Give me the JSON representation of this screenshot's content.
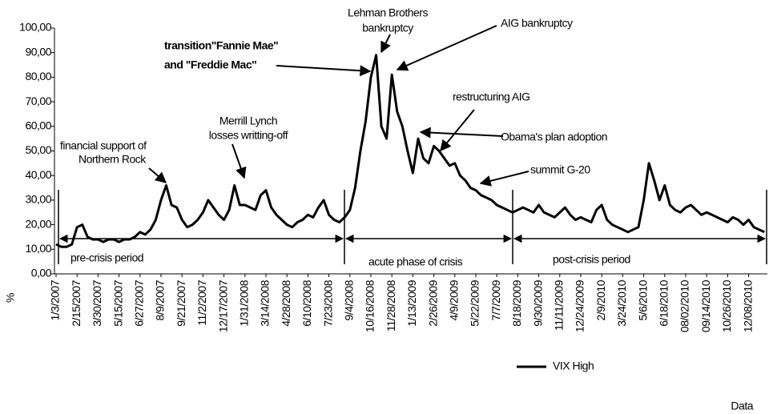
{
  "chart_data": {
    "type": "line",
    "y_label": "%",
    "x_label": "Data",
    "categories": [
      "1/3/2007",
      null,
      null,
      null,
      "2/15/2007",
      null,
      null,
      null,
      "3/30/2007",
      null,
      null,
      null,
      "5/15/2007",
      null,
      null,
      null,
      "6/27/2007",
      null,
      null,
      null,
      "8/9/2007",
      null,
      null,
      null,
      "9/21/2007",
      null,
      null,
      null,
      "11/2/2007",
      null,
      null,
      null,
      "12/17/2007",
      null,
      null,
      null,
      "1/31/2008",
      null,
      null,
      null,
      "3/14/2008",
      null,
      null,
      null,
      "4/28/2008",
      null,
      null,
      null,
      "6/10/2008",
      null,
      null,
      null,
      "7/23/2008",
      null,
      null,
      null,
      "9/4/2008",
      null,
      null,
      null,
      "10/16/2008",
      null,
      null,
      null,
      "11/28/2008",
      null,
      null,
      null,
      "1/13/2009",
      null,
      null,
      null,
      "2/26/2009",
      null,
      null,
      null,
      "4/9/2009",
      null,
      null,
      null,
      "5/22/2009",
      null,
      null,
      null,
      "7/7/2009",
      null,
      null,
      null,
      "8/18/2009",
      null,
      null,
      null,
      "9/30/2009",
      null,
      null,
      null,
      "11/11/2009",
      null,
      null,
      null,
      "12/24/2009",
      null,
      null,
      null,
      "2/9/2010",
      null,
      null,
      null,
      "3/24/2010",
      null,
      null,
      null,
      "5/6/2010",
      null,
      null,
      null,
      "6/18/2010",
      null,
      null,
      null,
      "08/02/2010",
      null,
      null,
      null,
      "09/14/2010",
      null,
      null,
      null,
      "10/26/2010",
      null,
      null,
      null,
      "12/08/2010",
      null,
      null,
      null
    ],
    "series": [
      {
        "name": "VIX High",
        "color": "#000000",
        "values": [
          12,
          11,
          11,
          12,
          19,
          20,
          15,
          14,
          14,
          13,
          14,
          14,
          13,
          14,
          14,
          15,
          17,
          16,
          18,
          22,
          30,
          36,
          28,
          27,
          22,
          19,
          20,
          22,
          25,
          30,
          27,
          24,
          22,
          26,
          36,
          28,
          28,
          27,
          26,
          32,
          34,
          27,
          24,
          22,
          20,
          19,
          21,
          22,
          24,
          23,
          27,
          30,
          24,
          22,
          21,
          23,
          26,
          35,
          50,
          62,
          80,
          89,
          60,
          55,
          81,
          66,
          60,
          50,
          41,
          55,
          47,
          45,
          52,
          50,
          47,
          44,
          45,
          40,
          38,
          35,
          34,
          32,
          31,
          30,
          28,
          27,
          26,
          25,
          26,
          27,
          26,
          25,
          28,
          25,
          24,
          23,
          25,
          27,
          24,
          22,
          23,
          22,
          21,
          26,
          28,
          22,
          20,
          19,
          18,
          17,
          18,
          19,
          30,
          45,
          38,
          30,
          36,
          28,
          26,
          25,
          27,
          28,
          26,
          24,
          25,
          24,
          23,
          22,
          21,
          23,
          22,
          20,
          22,
          19,
          18,
          17
        ]
      }
    ],
    "ylim": [
      0,
      100
    ],
    "yticks": [
      {
        "value": 0,
        "label": "0,00"
      },
      {
        "value": 10,
        "label": "10,00"
      },
      {
        "value": 20,
        "label": "20,00"
      },
      {
        "value": 30,
        "label": "30,00"
      },
      {
        "value": 40,
        "label": "40,00"
      },
      {
        "value": 50,
        "label": "50,00"
      },
      {
        "value": 60,
        "label": "60,00"
      },
      {
        "value": 70,
        "label": "70,00"
      },
      {
        "value": 80,
        "label": "80,00"
      },
      {
        "value": 90,
        "label": "90,00"
      },
      {
        "value": 100,
        "label": "100,00"
      }
    ],
    "annotations": [
      "Lehman Brothers",
      "bankruptcy",
      "AIG bankruptcy",
      "transition\"Fannie Mae\"",
      "and \"Freddie Mac\"",
      "restructuring  AIG",
      "Obama's plan adoption",
      "summit G-20",
      "Merrill Lynch",
      "losses writting-off",
      "financial support of",
      "Northern Rock"
    ],
    "periods": [
      "pre-crisis period",
      "acute phase of crisis",
      "post-crisis period"
    ]
  }
}
